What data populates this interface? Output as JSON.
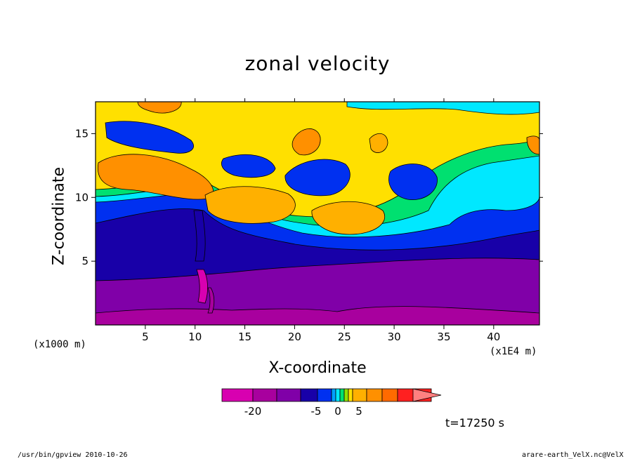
{
  "chart_data": {
    "type": "heatmap",
    "title": "zonal velocity",
    "xlabel": "X-coordinate",
    "ylabel": "Z-coordinate",
    "x_unit_left": "(x1000 m)",
    "x_unit_right": "(x1E4 m)",
    "x_tick_labels": [
      "5",
      "10",
      "15",
      "20",
      "25",
      "30",
      "35",
      "40"
    ],
    "x_ticks": [
      5,
      10,
      15,
      20,
      25,
      30,
      35,
      40
    ],
    "xlim": [
      0,
      44.6
    ],
    "y_tick_labels": [
      "5",
      "10",
      "15"
    ],
    "y_ticks": [
      5,
      10,
      15
    ],
    "ylim": [
      0,
      17.5
    ],
    "colorbar": {
      "tick_labels": [
        "-20",
        "-5",
        "0",
        "5"
      ],
      "levels": [
        -30,
        -25,
        -20,
        -15,
        -10,
        -5,
        -3,
        -2,
        -1,
        0,
        1,
        2,
        5,
        10,
        15,
        20
      ],
      "colors": [
        "#d800b0",
        "#a8009e",
        "#8000a8",
        "#1800a8",
        "#0030f0",
        "#00a0ff",
        "#00e8ff",
        "#00e070",
        "#90e000",
        "#ffe000",
        "#ffb000",
        "#ff9000",
        "#ff6a00",
        "#ff2020",
        "#ff8080"
      ]
    },
    "time_label": "t=17250 s"
  },
  "footer": {
    "left": "/usr/bin/gpview   2010-10-26",
    "right": "arare-earth_VelX.nc@VelX"
  }
}
